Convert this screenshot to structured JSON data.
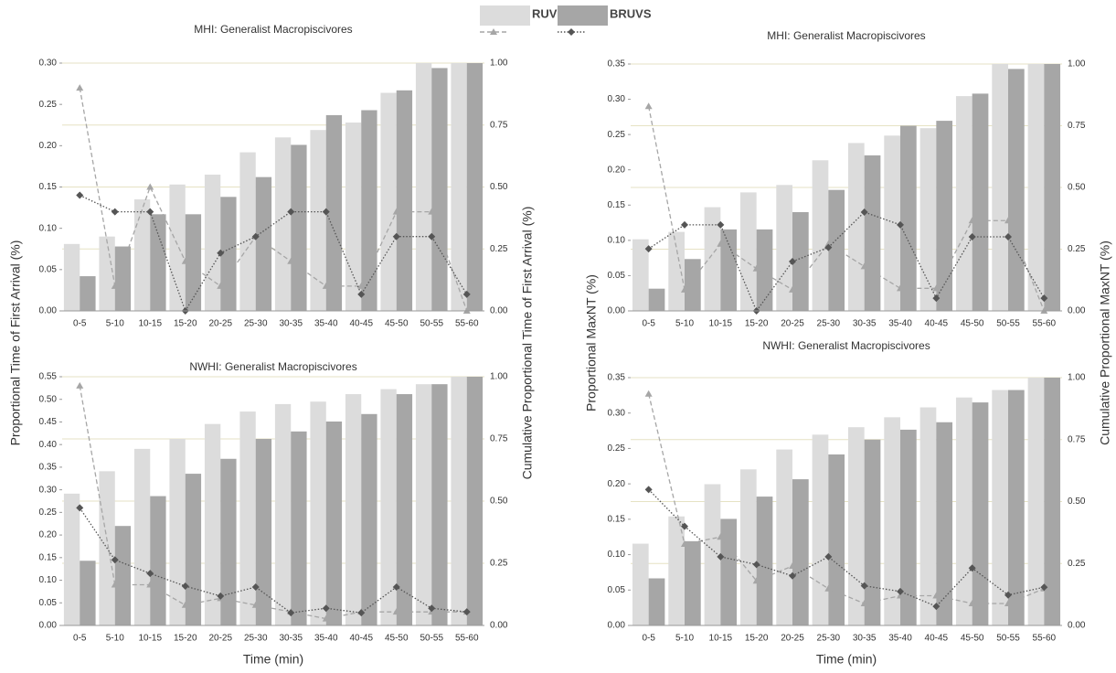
{
  "chart_data": [
    {
      "type": "combo",
      "title": "MHI: Generalist Macropiscivores",
      "ylabel": "Proportional Time of First Arrival (%)",
      "y2label": "Cumulative Proportional Time of First Arrival (%)",
      "categories": [
        "0-5",
        "5-10",
        "10-15",
        "15-20",
        "20-25",
        "25-30",
        "30-35",
        "35-40",
        "40-45",
        "45-50",
        "50-55",
        "55-60"
      ],
      "ylim": [
        0,
        0.3
      ],
      "yticks": [
        {
          "value": 0,
          "label": "0.00"
        },
        {
          "value": 0.05,
          "label": "0.05"
        },
        {
          "value": 0.1,
          "label": "0.10"
        },
        {
          "value": 0.15,
          "label": "0.15"
        },
        {
          "value": 0.2,
          "label": "0.20"
        },
        {
          "value": 0.25,
          "label": "0.25"
        },
        {
          "value": 0.3,
          "label": "0.30"
        }
      ],
      "y2lim": [
        0,
        1
      ],
      "y2ticks": [
        {
          "value": 0,
          "label": "0.00"
        },
        {
          "value": 0.25,
          "label": "0.25"
        },
        {
          "value": 0.5,
          "label": "0.50"
        },
        {
          "value": 0.75,
          "label": "0.75"
        },
        {
          "value": 1,
          "label": "1.00"
        }
      ],
      "grid": true,
      "series": [
        {
          "name": "RUVS",
          "type": "bar",
          "axis": "y2",
          "color": "#dcdcdc",
          "values": [
            0.27,
            0.3,
            0.45,
            0.51,
            0.55,
            0.64,
            0.7,
            0.73,
            0.76,
            0.88,
            1.0,
            1.0
          ]
        },
        {
          "name": "BRUVS",
          "type": "bar",
          "axis": "y2",
          "color": "#a6a6a6",
          "values": [
            0.14,
            0.26,
            0.39,
            0.39,
            0.46,
            0.54,
            0.67,
            0.79,
            0.81,
            0.89,
            0.98,
            1.0
          ]
        },
        {
          "type": "line",
          "color": "#a6a6a6",
          "dash": "dashed",
          "marker": "triangle",
          "values": [
            0.27,
            0.03,
            0.15,
            0.06,
            0.03,
            0.09,
            0.06,
            0.03,
            0.03,
            0.12,
            0.12,
            0.0
          ]
        },
        {
          "type": "line",
          "color": "#555555",
          "dash": "dotted",
          "marker": "diamond",
          "values": [
            0.14,
            0.12,
            0.12,
            0.0,
            0.07,
            0.09,
            0.12,
            0.12,
            0.02,
            0.09,
            0.09,
            0.02
          ]
        }
      ]
    },
    {
      "type": "combo",
      "title": "NWHI: Generalist Macropiscivores",
      "xlabel": "Time (min)",
      "categories": [
        "0-5",
        "5-10",
        "10-15",
        "15-20",
        "20-25",
        "25-30",
        "30-35",
        "35-40",
        "40-45",
        "45-50",
        "50-55",
        "55-60"
      ],
      "ylim": [
        0,
        0.55
      ],
      "yticks": [
        {
          "value": 0,
          "label": "0.00"
        },
        {
          "value": 0.05,
          "label": "0.05"
        },
        {
          "value": 0.1,
          "label": "0.10"
        },
        {
          "value": 0.15,
          "label": "0.15"
        },
        {
          "value": 0.2,
          "label": "0.20"
        },
        {
          "value": 0.25,
          "label": "0.25"
        },
        {
          "value": 0.3,
          "label": "0.30"
        },
        {
          "value": 0.35,
          "label": "0.35"
        },
        {
          "value": 0.4,
          "label": "0.40"
        },
        {
          "value": 0.45,
          "label": "0.45"
        },
        {
          "value": 0.5,
          "label": "0.50"
        },
        {
          "value": 0.55,
          "label": "0.55"
        }
      ],
      "y2lim": [
        0,
        1
      ],
      "y2ticks": [
        {
          "value": 0,
          "label": "0.00"
        },
        {
          "value": 0.25,
          "label": "0.25"
        },
        {
          "value": 0.5,
          "label": "0.50"
        },
        {
          "value": 0.75,
          "label": "0.75"
        },
        {
          "value": 1,
          "label": "1.00"
        }
      ],
      "grid": true,
      "series": [
        {
          "name": "RUVS",
          "type": "bar",
          "axis": "y2",
          "color": "#dcdcdc",
          "values": [
            0.53,
            0.62,
            0.71,
            0.75,
            0.81,
            0.86,
            0.89,
            0.9,
            0.93,
            0.95,
            0.97,
            1.0
          ]
        },
        {
          "name": "BRUVS",
          "type": "bar",
          "axis": "y2",
          "color": "#a6a6a6",
          "values": [
            0.26,
            0.4,
            0.52,
            0.61,
            0.67,
            0.75,
            0.78,
            0.82,
            0.85,
            0.93,
            0.97,
            1.0
          ]
        },
        {
          "type": "line",
          "color": "#a6a6a6",
          "dash": "dashed",
          "marker": "triangle",
          "values": [
            0.53,
            0.09,
            0.09,
            0.045,
            0.06,
            0.045,
            0.03,
            0.015,
            0.03,
            0.03,
            0.03,
            0.03
          ]
        },
        {
          "type": "line",
          "color": "#555555",
          "dash": "dotted",
          "marker": "diamond",
          "values": [
            0.26,
            0.145,
            0.115,
            0.087,
            0.065,
            0.085,
            0.028,
            0.038,
            0.028,
            0.085,
            0.038,
            0.03
          ]
        }
      ]
    },
    {
      "type": "combo",
      "title": "MHI: Generalist Macropiscivores",
      "ylabel": "Proportional MaxNT (%)",
      "y2label": "Cumulative Proportional MaxNT (%)",
      "categories": [
        "0-5",
        "5-10",
        "10-15",
        "15-20",
        "20-25",
        "25-30",
        "30-35",
        "35-40",
        "40-45",
        "45-50",
        "50-55",
        "55-60"
      ],
      "ylim": [
        0,
        0.35
      ],
      "yticks": [
        {
          "value": 0,
          "label": "0.00"
        },
        {
          "value": 0.05,
          "label": "0.05"
        },
        {
          "value": 0.1,
          "label": "0.10"
        },
        {
          "value": 0.15,
          "label": "0.15"
        },
        {
          "value": 0.2,
          "label": "0.20"
        },
        {
          "value": 0.25,
          "label": "0.25"
        },
        {
          "value": 0.3,
          "label": "0.30"
        },
        {
          "value": 0.35,
          "label": "0.35"
        }
      ],
      "y2lim": [
        0,
        1
      ],
      "y2ticks": [
        {
          "value": 0,
          "label": "0.00"
        },
        {
          "value": 0.25,
          "label": "0.25"
        },
        {
          "value": 0.5,
          "label": "0.50"
        },
        {
          "value": 0.75,
          "label": "0.75"
        },
        {
          "value": 1,
          "label": "1.00"
        }
      ],
      "grid": true,
      "series": [
        {
          "name": "RUVS",
          "type": "bar",
          "axis": "y2",
          "color": "#dcdcdc",
          "values": [
            0.29,
            0.32,
            0.42,
            0.48,
            0.51,
            0.61,
            0.68,
            0.71,
            0.74,
            0.87,
            1.0,
            1.0
          ]
        },
        {
          "name": "BRUVS",
          "type": "bar",
          "axis": "y2",
          "color": "#a6a6a6",
          "values": [
            0.09,
            0.21,
            0.33,
            0.33,
            0.4,
            0.49,
            0.63,
            0.75,
            0.77,
            0.88,
            0.98,
            1.0
          ]
        },
        {
          "type": "line",
          "color": "#a6a6a6",
          "dash": "dashed",
          "marker": "triangle",
          "values": [
            0.29,
            0.03,
            0.095,
            0.06,
            0.03,
            0.095,
            0.063,
            0.032,
            0.032,
            0.128,
            0.128,
            0.0
          ]
        },
        {
          "type": "line",
          "color": "#555555",
          "dash": "dotted",
          "marker": "diamond",
          "values": [
            0.088,
            0.122,
            0.122,
            0.0,
            0.07,
            0.09,
            0.14,
            0.122,
            0.018,
            0.105,
            0.105,
            0.018
          ]
        }
      ]
    },
    {
      "type": "combo",
      "title": "NWHI: Generalist Macropiscivores",
      "xlabel": "Time (min)",
      "categories": [
        "0-5",
        "5-10",
        "10-15",
        "15-20",
        "20-25",
        "25-30",
        "30-35",
        "35-40",
        "40-45",
        "45-50",
        "50-55",
        "55-60"
      ],
      "ylim": [
        0,
        0.35
      ],
      "yticks": [
        {
          "value": 0,
          "label": "0.00"
        },
        {
          "value": 0.05,
          "label": "0.05"
        },
        {
          "value": 0.1,
          "label": "0.10"
        },
        {
          "value": 0.15,
          "label": "0.15"
        },
        {
          "value": 0.2,
          "label": "0.20"
        },
        {
          "value": 0.25,
          "label": "0.25"
        },
        {
          "value": 0.3,
          "label": "0.30"
        },
        {
          "value": 0.35,
          "label": "0.35"
        }
      ],
      "y2lim": [
        0,
        1
      ],
      "y2ticks": [
        {
          "value": 0,
          "label": "0.00"
        },
        {
          "value": 0.25,
          "label": "0.25"
        },
        {
          "value": 0.5,
          "label": "0.50"
        },
        {
          "value": 0.75,
          "label": "0.75"
        },
        {
          "value": 1,
          "label": "1.00"
        }
      ],
      "grid": true,
      "series": [
        {
          "name": "RUVS",
          "type": "bar",
          "axis": "y2",
          "color": "#dcdcdc",
          "values": [
            0.33,
            0.44,
            0.57,
            0.63,
            0.71,
            0.77,
            0.8,
            0.84,
            0.88,
            0.92,
            0.95,
            1.0
          ]
        },
        {
          "name": "BRUVS",
          "type": "bar",
          "axis": "y2",
          "color": "#a6a6a6",
          "values": [
            0.19,
            0.34,
            0.43,
            0.52,
            0.59,
            0.69,
            0.75,
            0.79,
            0.82,
            0.9,
            0.95,
            1.0
          ]
        },
        {
          "type": "line",
          "color": "#a6a6a6",
          "dash": "dashed",
          "marker": "triangle",
          "values": [
            0.327,
            0.115,
            0.125,
            0.063,
            0.084,
            0.052,
            0.031,
            0.042,
            0.042,
            0.031,
            0.031,
            0.052
          ]
        },
        {
          "type": "line",
          "color": "#555555",
          "dash": "dotted",
          "marker": "diamond",
          "values": [
            0.192,
            0.14,
            0.097,
            0.086,
            0.07,
            0.097,
            0.056,
            0.048,
            0.027,
            0.081,
            0.043,
            0.054
          ]
        }
      ]
    }
  ]
}
